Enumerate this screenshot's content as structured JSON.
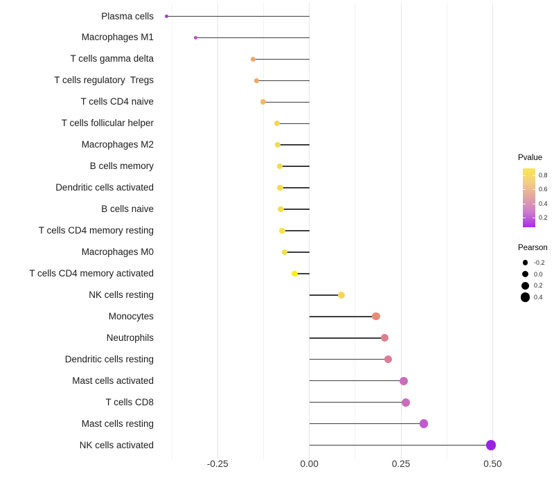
{
  "chart_data": {
    "type": "scatter",
    "variant": "lollipop",
    "title": "",
    "xlabel": "",
    "ylabel": "",
    "points": [
      {
        "label": "Plasma cells",
        "pearson": -0.39,
        "color": "#A93EC4"
      },
      {
        "label": "Macrophages M1",
        "pearson": -0.31,
        "color": "#BE4EC9"
      },
      {
        "label": "T cells gamma delta",
        "pearson": -0.153,
        "color": "#EDA76D"
      },
      {
        "label": "T cells regulatory  Tregs",
        "pearson": -0.144,
        "color": "#EDA76D"
      },
      {
        "label": "T cells CD4 naive",
        "pearson": -0.126,
        "color": "#F0B964"
      },
      {
        "label": "T cells follicular helper",
        "pearson": -0.088,
        "color": "#F2D84E"
      },
      {
        "label": "Macrophages M2",
        "pearson": -0.086,
        "color": "#F1DD4C"
      },
      {
        "label": "B cells memory",
        "pearson": -0.081,
        "color": "#F2DC4B"
      },
      {
        "label": "Dendritic cells activated",
        "pearson": -0.08,
        "color": "#F2DC4B"
      },
      {
        "label": "B cells naive",
        "pearson": -0.078,
        "color": "#F3DF4C"
      },
      {
        "label": "T cells CD4 memory resting",
        "pearson": -0.074,
        "color": "#F4E24D"
      },
      {
        "label": "Macrophages M0",
        "pearson": -0.067,
        "color": "#F3DF4B"
      },
      {
        "label": "T cells CD4 memory activated",
        "pearson": -0.04,
        "color": "#FAF018"
      },
      {
        "label": "NK cells resting",
        "pearson": 0.088,
        "color": "#F4D84F"
      },
      {
        "label": "Monocytes",
        "pearson": 0.182,
        "color": "#E88B79"
      },
      {
        "label": "Neutrophils",
        "pearson": 0.206,
        "color": "#DE7F90"
      },
      {
        "label": "Dendritic cells resting",
        "pearson": 0.215,
        "color": "#DD7D96"
      },
      {
        "label": "Mast cells activated",
        "pearson": 0.258,
        "color": "#C96CBC"
      },
      {
        "label": "T cells CD8",
        "pearson": 0.263,
        "color": "#C96CBC"
      },
      {
        "label": "Mast cells resting",
        "pearson": 0.312,
        "color": "#C258D0"
      },
      {
        "label": "NK cells activated",
        "pearson": 0.495,
        "color": "#9B22E3"
      }
    ],
    "x_axis": {
      "range": [
        -0.42,
        0.56
      ],
      "ticks": [
        -0.25,
        0.0,
        0.25,
        0.5
      ],
      "tick_labels": [
        "-0.25",
        "0.00",
        "0.25",
        "0.50"
      ],
      "minor_gridlines": [
        -0.375,
        -0.125,
        0.125,
        0.375
      ],
      "grid": true
    },
    "legend_pvalue": {
      "title": "Pvalue",
      "tick_labels": [
        "0.8",
        "0.6",
        "0.4",
        "0.2"
      ],
      "gradient_top_to_bottom": [
        "#F9E754",
        "#F3CC82",
        "#E3A3A4",
        "#CF79CD",
        "#AA2CF0"
      ]
    },
    "legend_pearson": {
      "title": "Pearson",
      "sizes": [
        -0.2,
        0.0,
        0.2,
        0.4
      ],
      "labels": [
        "-0.2",
        "0.0",
        "0.2",
        "0.4"
      ],
      "dot_color": "#000000"
    }
  },
  "colors": {
    "background": "#FFFFFF",
    "grid_major": "#E6E6E6",
    "grid_minor": "#F2F2F2",
    "stem": "#3C3C3C",
    "category_text": "#1A1A1A",
    "axis_tick_text": "#333333",
    "legend_title_text": "#000000",
    "legend_tick_text": "#222222"
  }
}
